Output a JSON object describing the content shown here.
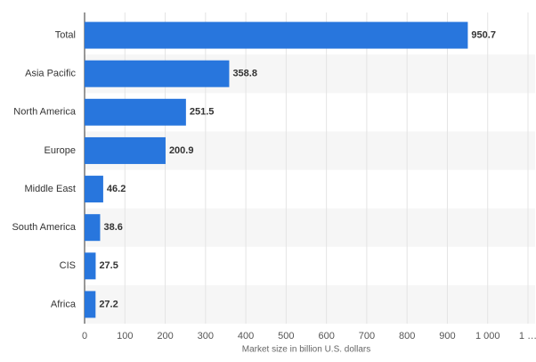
{
  "chart_data": {
    "type": "bar",
    "orientation": "horizontal",
    "categories": [
      "Total",
      "Asia Pacific",
      "North America",
      "Europe",
      "Middle East",
      "South America",
      "CIS",
      "Africa"
    ],
    "values": [
      950.7,
      358.8,
      251.5,
      200.9,
      46.2,
      38.6,
      27.5,
      27.2
    ],
    "color": "#2876dd",
    "xlabel": "Market size in billion U.S. dollars",
    "xlim": [
      0,
      1100
    ],
    "xticks": [
      0,
      100,
      200,
      300,
      400,
      500,
      600,
      700,
      800,
      900,
      {
        "value": 1000,
        "label": "1 000"
      },
      {
        "value": 1100,
        "label": "1 …"
      }
    ],
    "grid": true
  }
}
